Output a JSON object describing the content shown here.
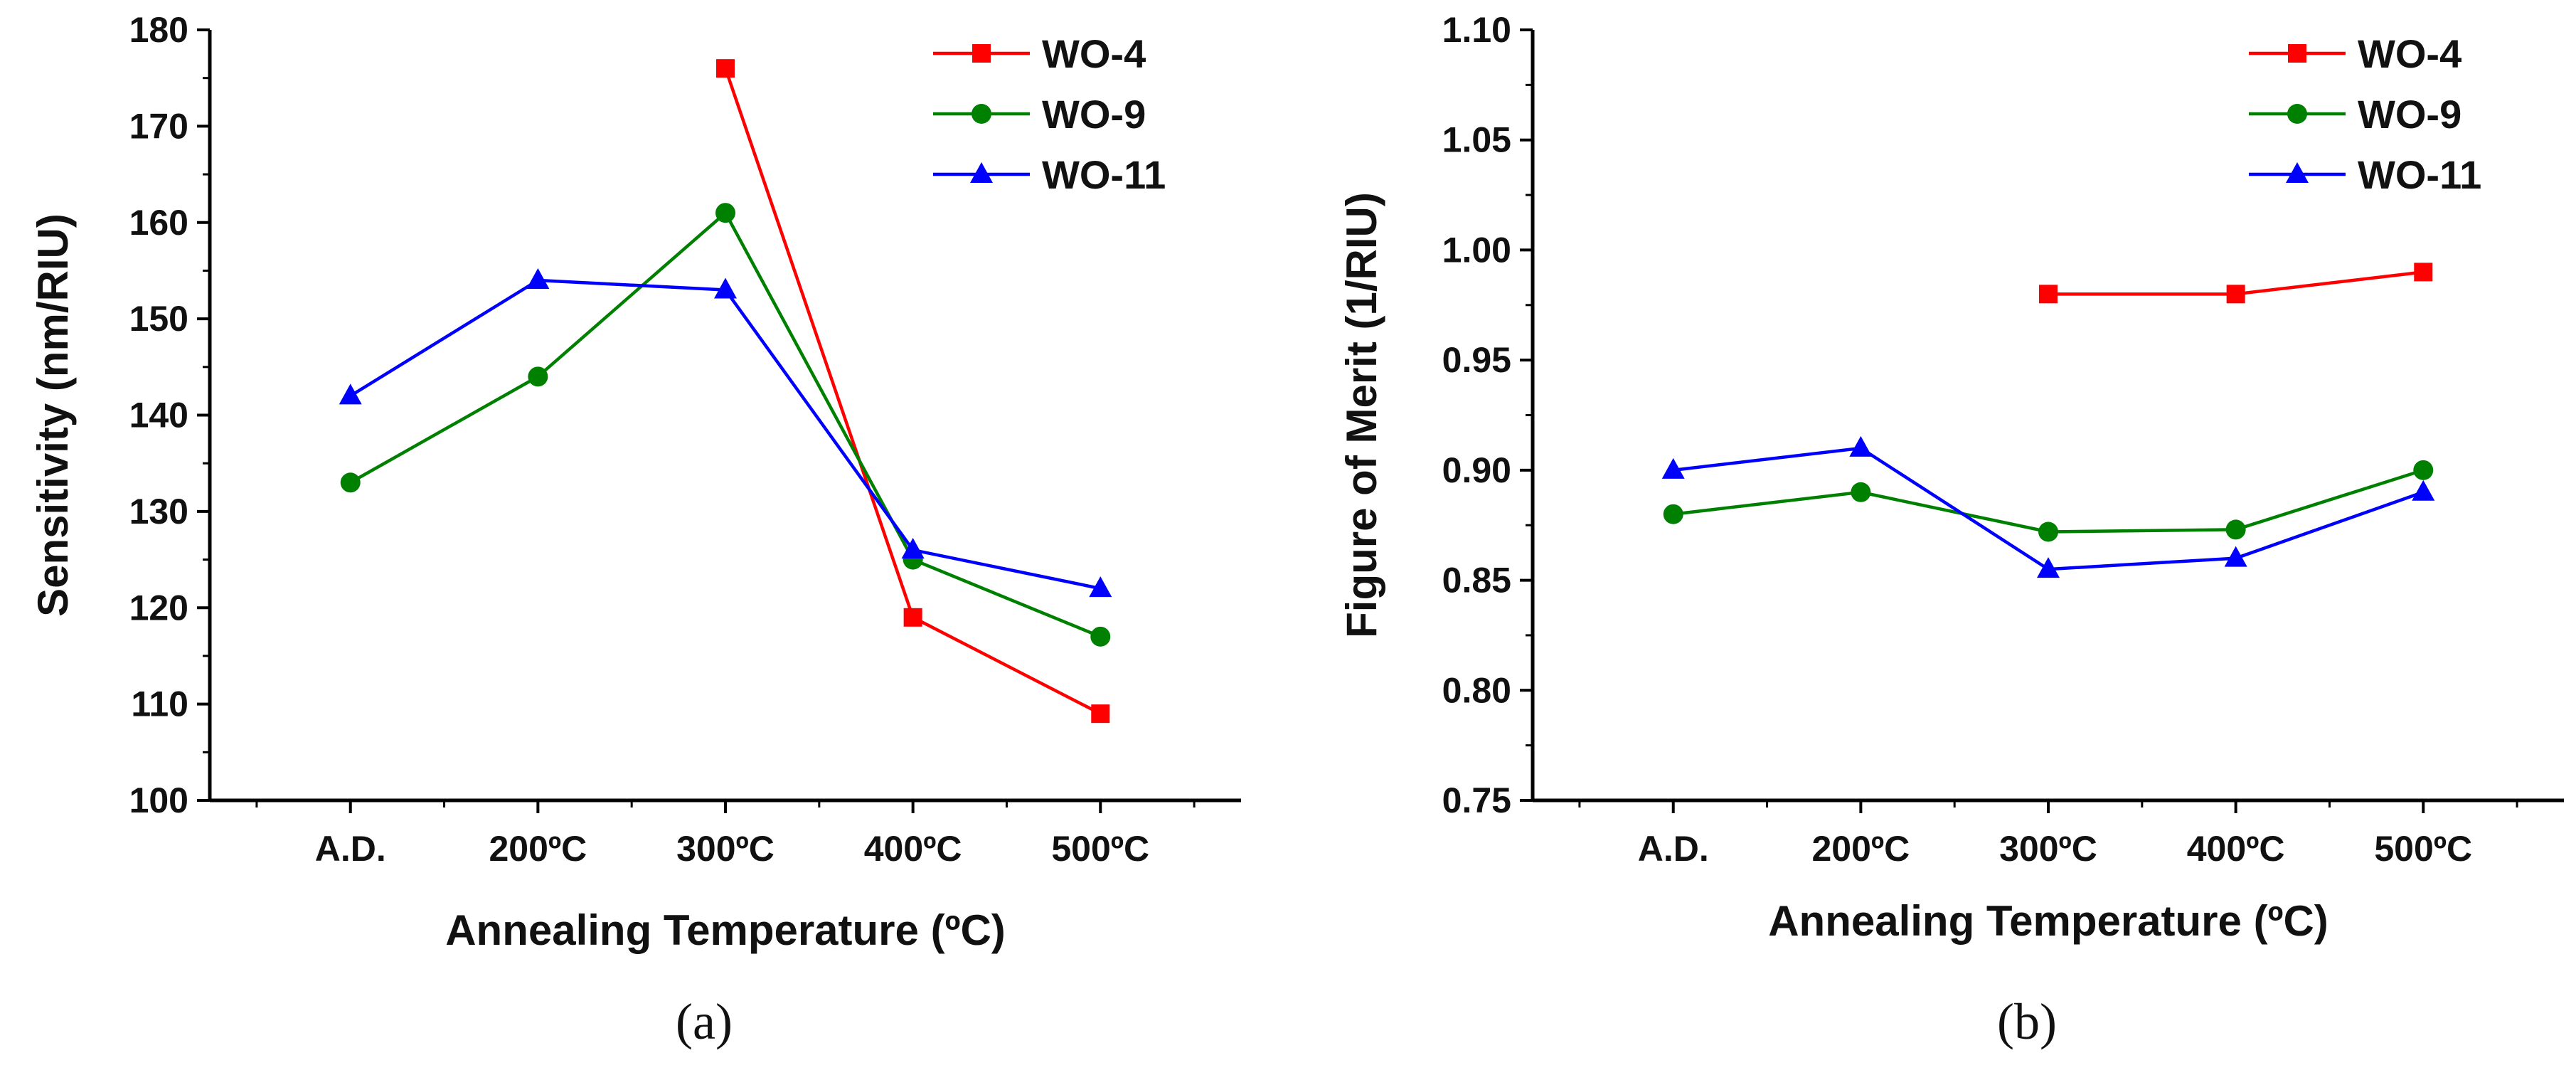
{
  "chart_data": [
    {
      "type": "line",
      "panel": "a",
      "caption": {
        "open": "(",
        "letter": "a",
        "close": ")"
      },
      "xlabel": "Annealing Temperature (ºC)",
      "ylabel": "Sensitivity (nm/RIU)",
      "categories": [
        "A.D.",
        "200ºC",
        "300ºC",
        "400ºC",
        "500ºC"
      ],
      "ylim": [
        100,
        180
      ],
      "yticks": [
        100,
        110,
        120,
        130,
        140,
        150,
        160,
        170,
        180
      ],
      "ytick_labels": [
        "100",
        "110",
        "120",
        "130",
        "140",
        "150",
        "160",
        "170",
        "180"
      ],
      "legend_position": "top-right",
      "series": [
        {
          "name": "WO-4",
          "color": "#ff0000",
          "marker": "square",
          "values": [
            null,
            null,
            176,
            119,
            109
          ]
        },
        {
          "name": "WO-9",
          "color": "#008000",
          "marker": "circle",
          "values": [
            133,
            144,
            161,
            125,
            117
          ]
        },
        {
          "name": "WO-11",
          "color": "#0000ff",
          "marker": "triangle",
          "values": [
            142,
            154,
            153,
            126,
            122
          ]
        }
      ]
    },
    {
      "type": "line",
      "panel": "b",
      "caption": {
        "open": "(",
        "letter": "b",
        "close": ")"
      },
      "xlabel": "Annealing Temperature (ºC)",
      "ylabel": "Figure of Merit (1/RIU)",
      "categories": [
        "A.D.",
        "200ºC",
        "300ºC",
        "400ºC",
        "500ºC"
      ],
      "ylim": [
        0.75,
        1.1
      ],
      "yticks": [
        0.75,
        0.8,
        0.85,
        0.9,
        0.95,
        1.0,
        1.05,
        1.1
      ],
      "ytick_labels": [
        "0.75",
        "0.80",
        "0.85",
        "0.90",
        "0.95",
        "1.00",
        "1.05",
        "1.10"
      ],
      "legend_position": "top-right",
      "series": [
        {
          "name": "WO-4",
          "color": "#ff0000",
          "marker": "square",
          "values": [
            null,
            null,
            0.98,
            0.98,
            0.99
          ]
        },
        {
          "name": "WO-9",
          "color": "#008000",
          "marker": "circle",
          "values": [
            0.88,
            0.89,
            0.872,
            0.873,
            0.9
          ]
        },
        {
          "name": "WO-11",
          "color": "#0000ff",
          "marker": "triangle",
          "values": [
            0.9,
            0.91,
            0.855,
            0.86,
            0.89
          ]
        }
      ]
    }
  ]
}
